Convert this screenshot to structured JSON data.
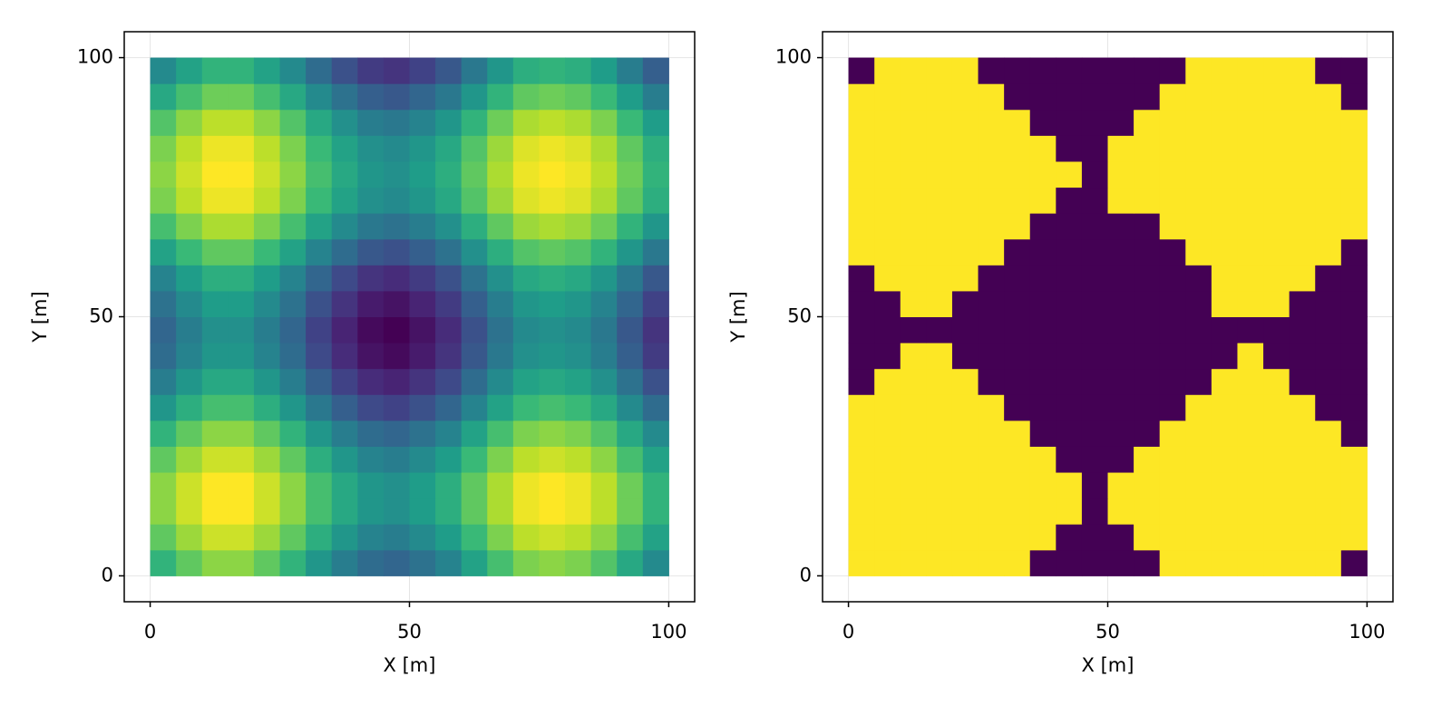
{
  "chart_data": [
    {
      "type": "heatmap",
      "xlabel": "X [m]",
      "ylabel": "Y [m]",
      "xlim": [
        -5,
        105
      ],
      "ylim": [
        -5,
        105
      ],
      "xticks": [
        0,
        50,
        100
      ],
      "yticks": [
        0,
        50,
        100
      ],
      "grid": true,
      "colormap": "viridis",
      "colorrange": [
        -2,
        2
      ],
      "x": [
        2.5,
        7.5,
        12.5,
        17.5,
        22.5,
        27.5,
        32.5,
        37.5,
        42.5,
        47.5,
        52.5,
        57.5,
        62.5,
        67.5,
        72.5,
        77.5,
        82.5,
        87.5,
        92.5,
        97.5
      ],
      "y": [
        2.5,
        7.5,
        12.5,
        17.5,
        22.5,
        27.5,
        32.5,
        37.5,
        42.5,
        47.5,
        52.5,
        57.5,
        62.5,
        67.5,
        72.5,
        77.5,
        82.5,
        87.5,
        92.5,
        97.5
      ],
      "z": [
        [
          0.6,
          1.0,
          1.3,
          1.3,
          1.0,
          0.6,
          0.1,
          -0.3,
          -0.6,
          -0.7,
          -0.5,
          -0.2,
          0.3,
          0.8,
          1.2,
          1.3,
          1.2,
          0.9,
          0.4,
          -0.1
        ],
        [
          1.0,
          1.4,
          1.7,
          1.7,
          1.4,
          1.0,
          0.5,
          0.1,
          -0.2,
          -0.3,
          -0.1,
          0.2,
          0.7,
          1.2,
          1.6,
          1.7,
          1.6,
          1.3,
          0.8,
          0.3
        ],
        [
          1.3,
          1.7,
          2.0,
          2.0,
          1.7,
          1.3,
          0.8,
          0.4,
          0.1,
          0.0,
          0.2,
          0.5,
          1.0,
          1.5,
          1.9,
          2.0,
          1.9,
          1.6,
          1.1,
          0.6
        ],
        [
          1.3,
          1.7,
          2.0,
          2.0,
          1.7,
          1.3,
          0.8,
          0.4,
          0.1,
          0.0,
          0.2,
          0.5,
          1.0,
          1.5,
          1.9,
          2.0,
          1.9,
          1.6,
          1.1,
          0.6
        ],
        [
          1.0,
          1.4,
          1.7,
          1.7,
          1.4,
          1.0,
          0.5,
          0.1,
          -0.2,
          -0.3,
          -0.1,
          0.2,
          0.7,
          1.2,
          1.6,
          1.7,
          1.6,
          1.3,
          0.8,
          0.3
        ],
        [
          0.6,
          1.0,
          1.3,
          1.3,
          1.0,
          0.6,
          0.1,
          -0.3,
          -0.6,
          -0.7,
          -0.5,
          -0.2,
          0.3,
          0.8,
          1.2,
          1.3,
          1.2,
          0.9,
          0.4,
          -0.1
        ],
        [
          0.1,
          0.5,
          0.8,
          0.8,
          0.5,
          0.1,
          -0.4,
          -0.8,
          -1.1,
          -1.2,
          -1.0,
          -0.7,
          -0.2,
          0.3,
          0.7,
          0.8,
          0.7,
          0.4,
          -0.1,
          -0.6
        ],
        [
          -0.3,
          0.1,
          0.4,
          0.4,
          0.1,
          -0.3,
          -0.8,
          -1.2,
          -1.5,
          -1.6,
          -1.4,
          -1.1,
          -0.6,
          -0.1,
          0.3,
          0.4,
          0.3,
          0.0,
          -0.5,
          -1.0
        ],
        [
          -0.6,
          -0.2,
          0.1,
          0.1,
          -0.2,
          -0.6,
          -1.1,
          -1.5,
          -1.8,
          -1.9,
          -1.7,
          -1.4,
          -0.9,
          -0.4,
          0.0,
          0.1,
          0.0,
          -0.3,
          -0.8,
          -1.3
        ],
        [
          -0.7,
          -0.3,
          0.0,
          0.0,
          -0.3,
          -0.7,
          -1.2,
          -1.6,
          -1.9,
          -2.0,
          -1.8,
          -1.5,
          -1.0,
          -0.5,
          -0.1,
          0.0,
          -0.1,
          -0.4,
          -0.9,
          -1.4
        ],
        [
          -0.5,
          -0.1,
          0.2,
          0.2,
          -0.1,
          -0.5,
          -1.0,
          -1.4,
          -1.7,
          -1.8,
          -1.6,
          -1.3,
          -0.8,
          -0.3,
          0.1,
          0.2,
          0.1,
          -0.2,
          -0.7,
          -1.2
        ],
        [
          -0.2,
          0.2,
          0.5,
          0.5,
          0.2,
          -0.2,
          -0.7,
          -1.1,
          -1.4,
          -1.5,
          -1.3,
          -1.0,
          -0.5,
          0.0,
          0.4,
          0.5,
          0.4,
          0.1,
          -0.4,
          -0.9
        ],
        [
          0.3,
          0.7,
          1.0,
          1.0,
          0.7,
          0.3,
          -0.2,
          -0.6,
          -0.9,
          -1.0,
          -0.8,
          -0.5,
          0.0,
          0.5,
          0.9,
          1.0,
          0.9,
          0.6,
          0.1,
          -0.4
        ],
        [
          0.8,
          1.2,
          1.5,
          1.5,
          1.2,
          0.8,
          0.3,
          -0.1,
          -0.4,
          -0.5,
          -0.3,
          0.0,
          0.5,
          1.0,
          1.4,
          1.5,
          1.4,
          1.1,
          0.6,
          0.1
        ],
        [
          1.2,
          1.6,
          1.9,
          1.9,
          1.6,
          1.2,
          0.7,
          0.3,
          0.0,
          -0.1,
          0.1,
          0.4,
          0.9,
          1.4,
          1.8,
          1.9,
          1.8,
          1.5,
          1.0,
          0.5
        ],
        [
          1.3,
          1.7,
          2.0,
          2.0,
          1.7,
          1.3,
          0.8,
          0.4,
          0.1,
          0.0,
          0.2,
          0.5,
          1.0,
          1.5,
          1.9,
          2.0,
          1.9,
          1.6,
          1.1,
          0.6
        ],
        [
          1.2,
          1.6,
          1.9,
          1.9,
          1.6,
          1.2,
          0.7,
          0.3,
          0.0,
          -0.1,
          0.1,
          0.4,
          0.9,
          1.4,
          1.8,
          1.9,
          1.8,
          1.5,
          1.0,
          0.5
        ],
        [
          0.9,
          1.3,
          1.6,
          1.6,
          1.3,
          0.9,
          0.4,
          0.0,
          -0.3,
          -0.4,
          -0.2,
          0.1,
          0.6,
          1.1,
          1.5,
          1.6,
          1.5,
          1.2,
          0.7,
          0.2
        ],
        [
          0.4,
          0.8,
          1.1,
          1.1,
          0.8,
          0.4,
          -0.1,
          -0.5,
          -0.8,
          -0.9,
          -0.7,
          -0.4,
          0.1,
          0.6,
          1.0,
          1.1,
          1.0,
          0.7,
          0.2,
          -0.3
        ],
        [
          -0.1,
          0.3,
          0.6,
          0.6,
          0.3,
          -0.1,
          -0.6,
          -1.0,
          -1.3,
          -1.4,
          -1.2,
          -0.9,
          -0.4,
          0.1,
          0.5,
          0.6,
          0.5,
          0.2,
          -0.3,
          -0.8
        ]
      ]
    },
    {
      "type": "heatmap",
      "xlabel": "X [m]",
      "ylabel": "Y [m]",
      "xlim": [
        -5,
        105
      ],
      "ylim": [
        -5,
        105
      ],
      "xticks": [
        0,
        50,
        100
      ],
      "yticks": [
        0,
        50,
        100
      ],
      "grid": true,
      "colormap": "viridis",
      "colorrange": [
        0,
        1
      ],
      "x": [
        2.5,
        7.5,
        12.5,
        17.5,
        22.5,
        27.5,
        32.5,
        37.5,
        42.5,
        47.5,
        52.5,
        57.5,
        62.5,
        67.5,
        72.5,
        77.5,
        82.5,
        87.5,
        92.5,
        97.5
      ],
      "y": [
        2.5,
        7.5,
        12.5,
        17.5,
        22.5,
        27.5,
        32.5,
        37.5,
        42.5,
        47.5,
        52.5,
        57.5,
        62.5,
        67.5,
        72.5,
        77.5,
        82.5,
        87.5,
        92.5,
        97.5
      ],
      "z": [
        [
          1,
          1,
          1,
          1,
          1,
          1,
          1,
          0,
          0,
          0,
          0,
          0,
          1,
          1,
          1,
          1,
          1,
          1,
          1,
          0
        ],
        [
          1,
          1,
          1,
          1,
          1,
          1,
          1,
          1,
          0,
          0,
          0,
          1,
          1,
          1,
          1,
          1,
          1,
          1,
          1,
          1
        ],
        [
          1,
          1,
          1,
          1,
          1,
          1,
          1,
          1,
          1,
          0,
          1,
          1,
          1,
          1,
          1,
          1,
          1,
          1,
          1,
          1
        ],
        [
          1,
          1,
          1,
          1,
          1,
          1,
          1,
          1,
          1,
          0,
          1,
          1,
          1,
          1,
          1,
          1,
          1,
          1,
          1,
          1
        ],
        [
          1,
          1,
          1,
          1,
          1,
          1,
          1,
          1,
          0,
          0,
          0,
          1,
          1,
          1,
          1,
          1,
          1,
          1,
          1,
          1
        ],
        [
          1,
          1,
          1,
          1,
          1,
          1,
          1,
          0,
          0,
          0,
          0,
          0,
          1,
          1,
          1,
          1,
          1,
          1,
          1,
          0
        ],
        [
          1,
          1,
          1,
          1,
          1,
          1,
          0,
          0,
          0,
          0,
          0,
          0,
          0,
          1,
          1,
          1,
          1,
          1,
          0,
          0
        ],
        [
          0,
          1,
          1,
          1,
          1,
          0,
          0,
          0,
          0,
          0,
          0,
          0,
          0,
          0,
          1,
          1,
          1,
          0,
          0,
          0
        ],
        [
          0,
          0,
          1,
          1,
          0,
          0,
          0,
          0,
          0,
          0,
          0,
          0,
          0,
          0,
          0,
          1,
          0,
          0,
          0,
          0
        ],
        [
          0,
          0,
          0,
          0,
          0,
          0,
          0,
          0,
          0,
          0,
          0,
          0,
          0,
          0,
          0,
          0,
          0,
          0,
          0,
          0
        ],
        [
          0,
          0,
          1,
          1,
          0,
          0,
          0,
          0,
          0,
          0,
          0,
          0,
          0,
          0,
          1,
          1,
          1,
          0,
          0,
          0
        ],
        [
          0,
          1,
          1,
          1,
          1,
          0,
          0,
          0,
          0,
          0,
          0,
          0,
          0,
          0,
          1,
          1,
          1,
          1,
          0,
          0
        ],
        [
          1,
          1,
          1,
          1,
          1,
          1,
          0,
          0,
          0,
          0,
          0,
          0,
          0,
          1,
          1,
          1,
          1,
          1,
          1,
          0
        ],
        [
          1,
          1,
          1,
          1,
          1,
          1,
          1,
          0,
          0,
          0,
          0,
          0,
          1,
          1,
          1,
          1,
          1,
          1,
          1,
          1
        ],
        [
          1,
          1,
          1,
          1,
          1,
          1,
          1,
          1,
          0,
          0,
          1,
          1,
          1,
          1,
          1,
          1,
          1,
          1,
          1,
          1
        ],
        [
          1,
          1,
          1,
          1,
          1,
          1,
          1,
          1,
          1,
          0,
          1,
          1,
          1,
          1,
          1,
          1,
          1,
          1,
          1,
          1
        ],
        [
          1,
          1,
          1,
          1,
          1,
          1,
          1,
          1,
          0,
          0,
          1,
          1,
          1,
          1,
          1,
          1,
          1,
          1,
          1,
          1
        ],
        [
          1,
          1,
          1,
          1,
          1,
          1,
          1,
          0,
          0,
          0,
          0,
          1,
          1,
          1,
          1,
          1,
          1,
          1,
          1,
          1
        ],
        [
          1,
          1,
          1,
          1,
          1,
          1,
          0,
          0,
          0,
          0,
          0,
          0,
          1,
          1,
          1,
          1,
          1,
          1,
          1,
          0
        ],
        [
          0,
          1,
          1,
          1,
          1,
          0,
          0,
          0,
          0,
          0,
          0,
          0,
          0,
          1,
          1,
          1,
          1,
          1,
          0,
          0
        ]
      ]
    }
  ]
}
